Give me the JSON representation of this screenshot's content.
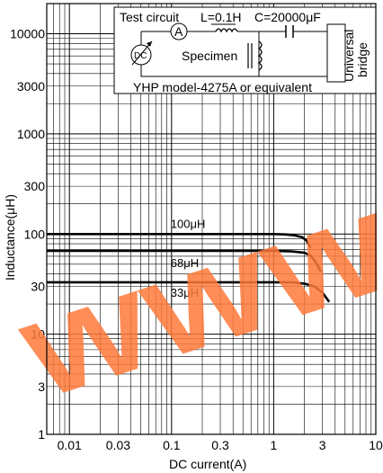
{
  "chart_data": {
    "type": "line",
    "xlabel": "DC current(A)",
    "ylabel": "Inductance(μH)",
    "xscale": "log",
    "yscale": "log",
    "xlim": [
      0.006,
      10
    ],
    "ylim": [
      1,
      20000
    ],
    "x_ticks": [
      {
        "value": 0.01,
        "label": "0.01"
      },
      {
        "value": 0.03,
        "label": "0.03"
      },
      {
        "value": 0.1,
        "label": "0.1"
      },
      {
        "value": 0.3,
        "label": "0.3"
      },
      {
        "value": 1,
        "label": "1"
      },
      {
        "value": 3,
        "label": "3"
      },
      {
        "value": 10,
        "label": "10"
      }
    ],
    "y_ticks": [
      {
        "value": 1,
        "label": "1"
      },
      {
        "value": 3,
        "label": "3"
      },
      {
        "value": 10,
        "label": "10"
      },
      {
        "value": 30,
        "label": "30"
      },
      {
        "value": 100,
        "label": "100"
      },
      {
        "value": 300,
        "label": "300"
      },
      {
        "value": 1000,
        "label": "1000"
      },
      {
        "value": 3000,
        "label": "3000"
      },
      {
        "value": 10000,
        "label": "10000"
      }
    ],
    "grid": true,
    "series": [
      {
        "name": "100μH",
        "x": [
          0.006,
          0.1,
          0.5,
          1.0,
          1.3,
          1.6,
          1.9,
          2.1,
          2.3
        ],
        "y": [
          100,
          100,
          100,
          100,
          99,
          97,
          93,
          86,
          73
        ]
      },
      {
        "name": "68μH",
        "x": [
          0.006,
          0.1,
          0.5,
          1.0,
          1.5,
          2.0,
          2.3,
          2.6,
          2.9
        ],
        "y": [
          68,
          68,
          68,
          68,
          67,
          65,
          61,
          52,
          42
        ]
      },
      {
        "name": "33μH",
        "x": [
          0.006,
          0.1,
          0.5,
          1.0,
          1.5,
          2.0,
          2.5,
          3.0,
          3.5
        ],
        "y": [
          33,
          33,
          33,
          33,
          33,
          32,
          30,
          26,
          21
        ]
      }
    ]
  },
  "inset": {
    "title": "Test circuit",
    "inductor_label": "L=0.1H",
    "capacitor_label": "C=20000μF",
    "ammeter_label": "A",
    "source_label": "DC",
    "specimen_label": "Specimen",
    "bridge_label_line1": "Universal",
    "bridge_label_line2": "bridge",
    "caption": "YHP model-4275A or equivalent"
  },
  "watermark": {
    "text": "WWW",
    "color": "#ff7a3a"
  }
}
